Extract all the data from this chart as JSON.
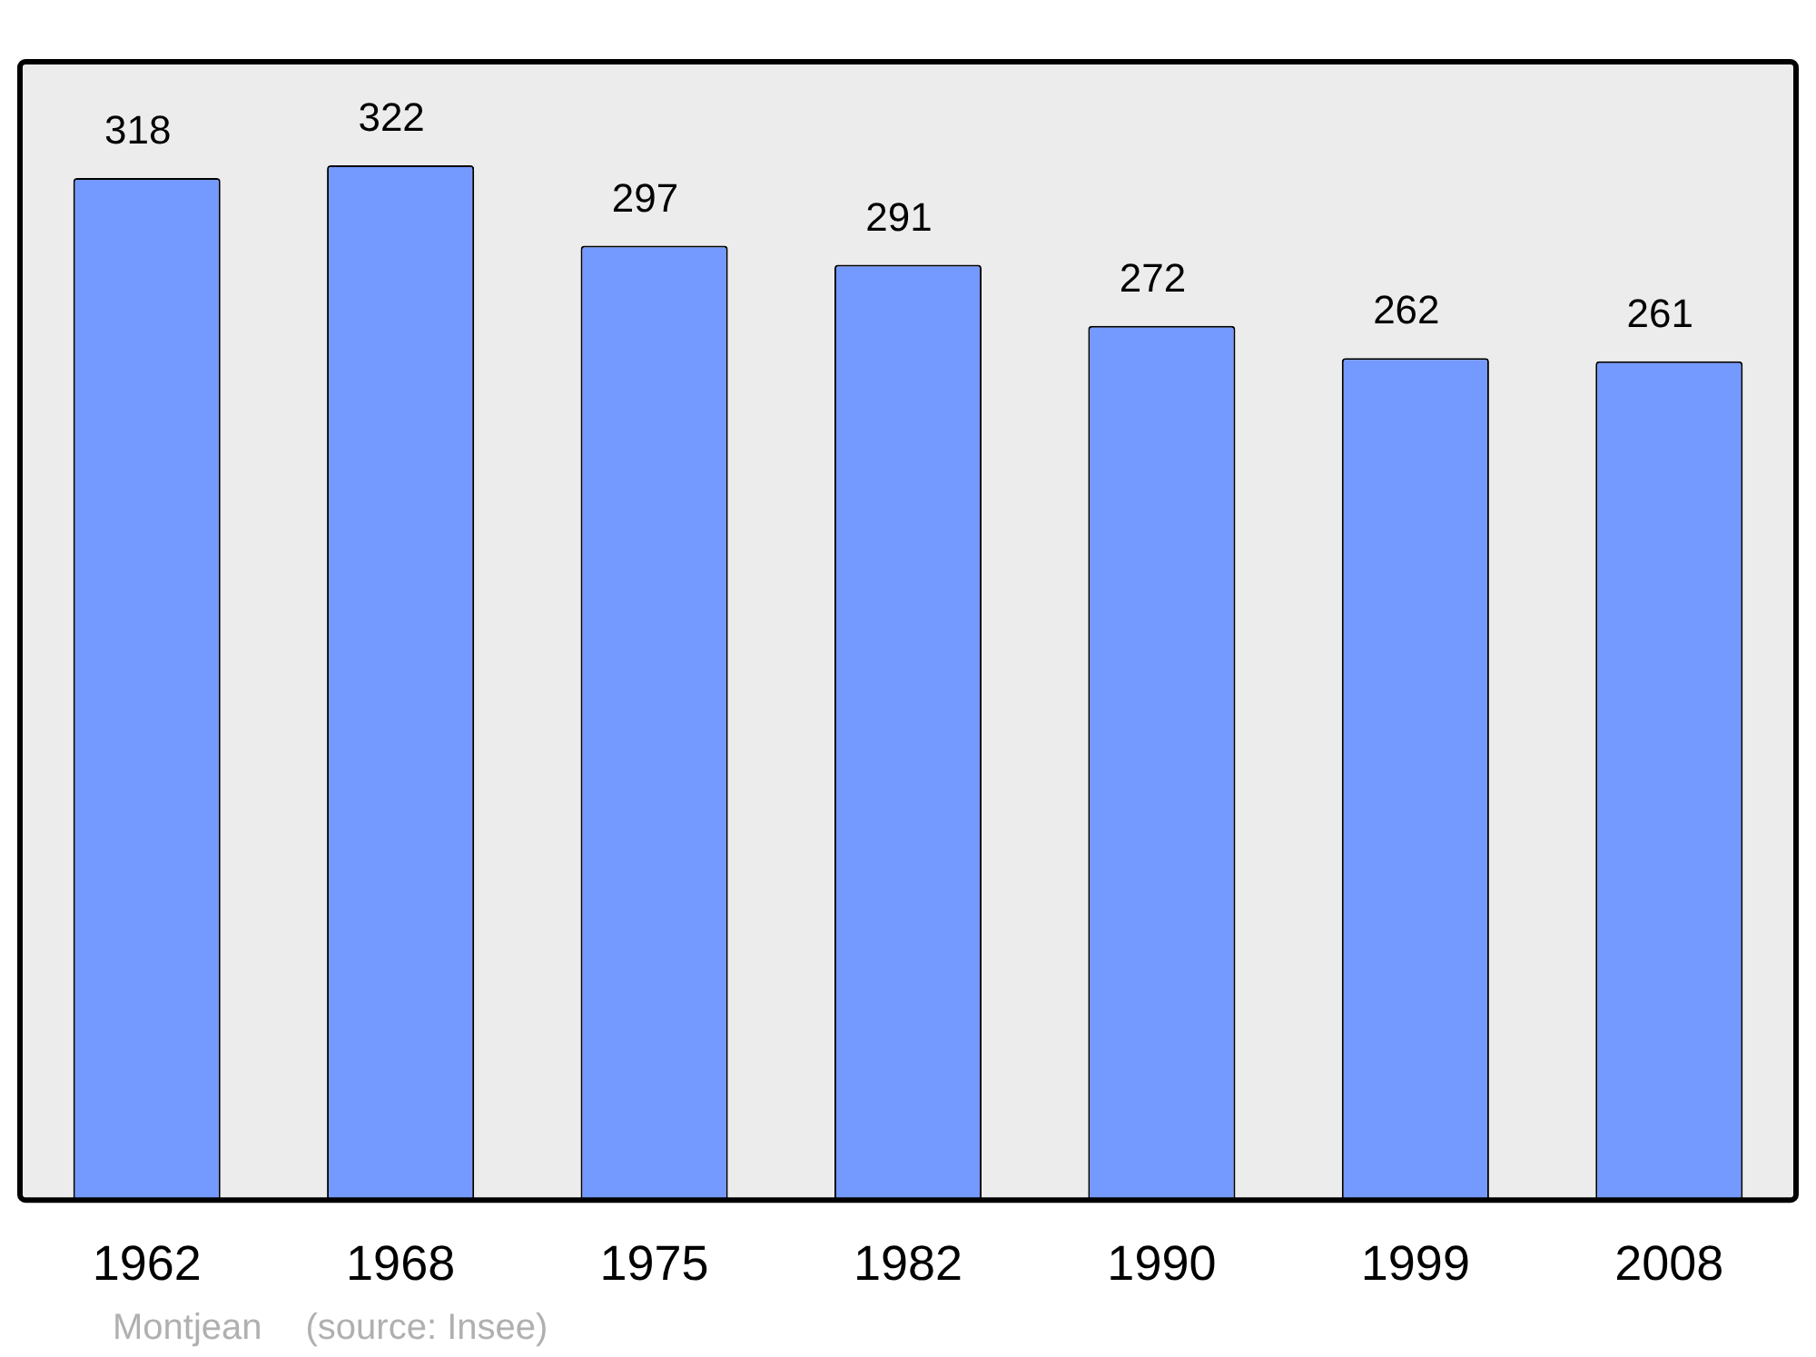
{
  "chart_data": {
    "type": "bar",
    "categories": [
      "1962",
      "1968",
      "1975",
      "1982",
      "1990",
      "1999",
      "2008"
    ],
    "values": [
      318,
      322,
      297,
      291,
      272,
      262,
      261
    ],
    "color": "#7499ff",
    "data_labels": true,
    "grid": false,
    "legend": false,
    "annotations": [
      "Montjean",
      "(source: Insee)"
    ]
  }
}
